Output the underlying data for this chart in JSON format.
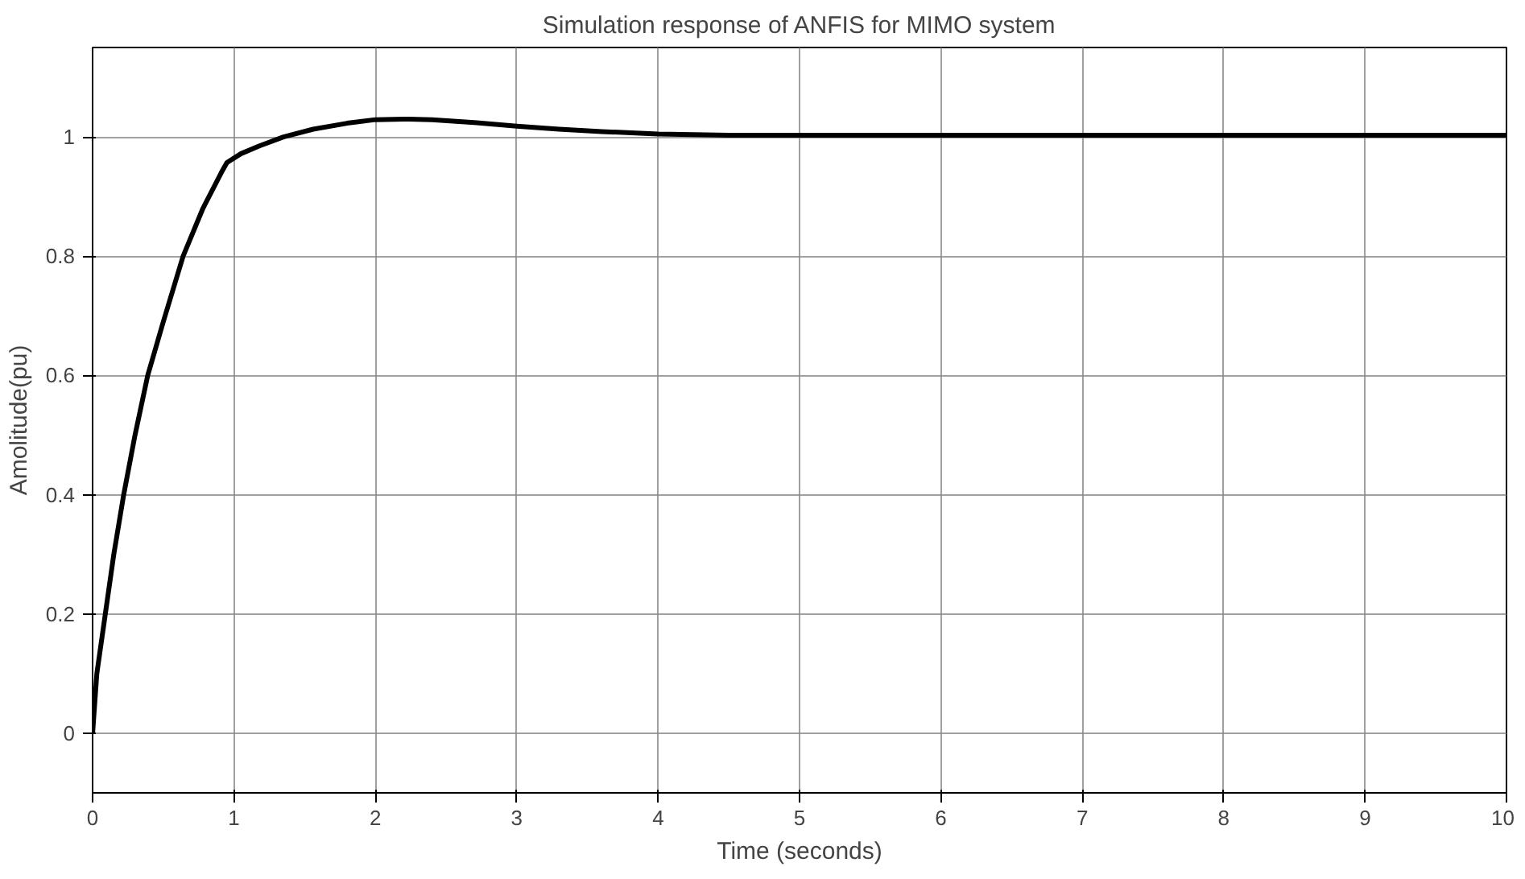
{
  "chart_data": {
    "type": "line",
    "title": "Simulation response of ANFIS for MIMO system",
    "xlabel": "Time (seconds)",
    "ylabel": "Amolitude(pu)",
    "series": [
      {
        "color": "#000000",
        "x": [
          0,
          0.03,
          0.09,
          0.15,
          0.22,
          0.3,
          0.39,
          0.5,
          0.64,
          0.78,
          0.91,
          0.95,
          1.05,
          1.18,
          1.35,
          1.56,
          1.8,
          2.0,
          2.2,
          2.4,
          2.7,
          3.0,
          3.3,
          3.6,
          4.0,
          4.5,
          5,
          6,
          7,
          8,
          9,
          10
        ],
        "values": [
          0,
          0.1,
          0.2,
          0.3,
          0.4,
          0.5,
          0.6,
          0.69,
          0.8,
          0.88,
          0.94,
          0.957,
          0.972,
          0.985,
          1.0,
          1.013,
          1.023,
          1.029,
          1.03,
          1.029,
          1.024,
          1.018,
          1.013,
          1.009,
          1.005,
          1.003,
          1.003,
          1.003,
          1.003,
          1.003,
          1.003,
          1.003
        ]
      }
    ],
    "xlim": [
      0,
      10
    ],
    "ylim": [
      -0.1,
      1.15
    ],
    "xticks": [
      0,
      1,
      2,
      3,
      4,
      5,
      6,
      7,
      8,
      9,
      10
    ],
    "yticks": [
      0,
      0.2,
      0.4,
      0.6,
      0.8,
      1
    ],
    "grid": true,
    "line_style": "solid"
  }
}
